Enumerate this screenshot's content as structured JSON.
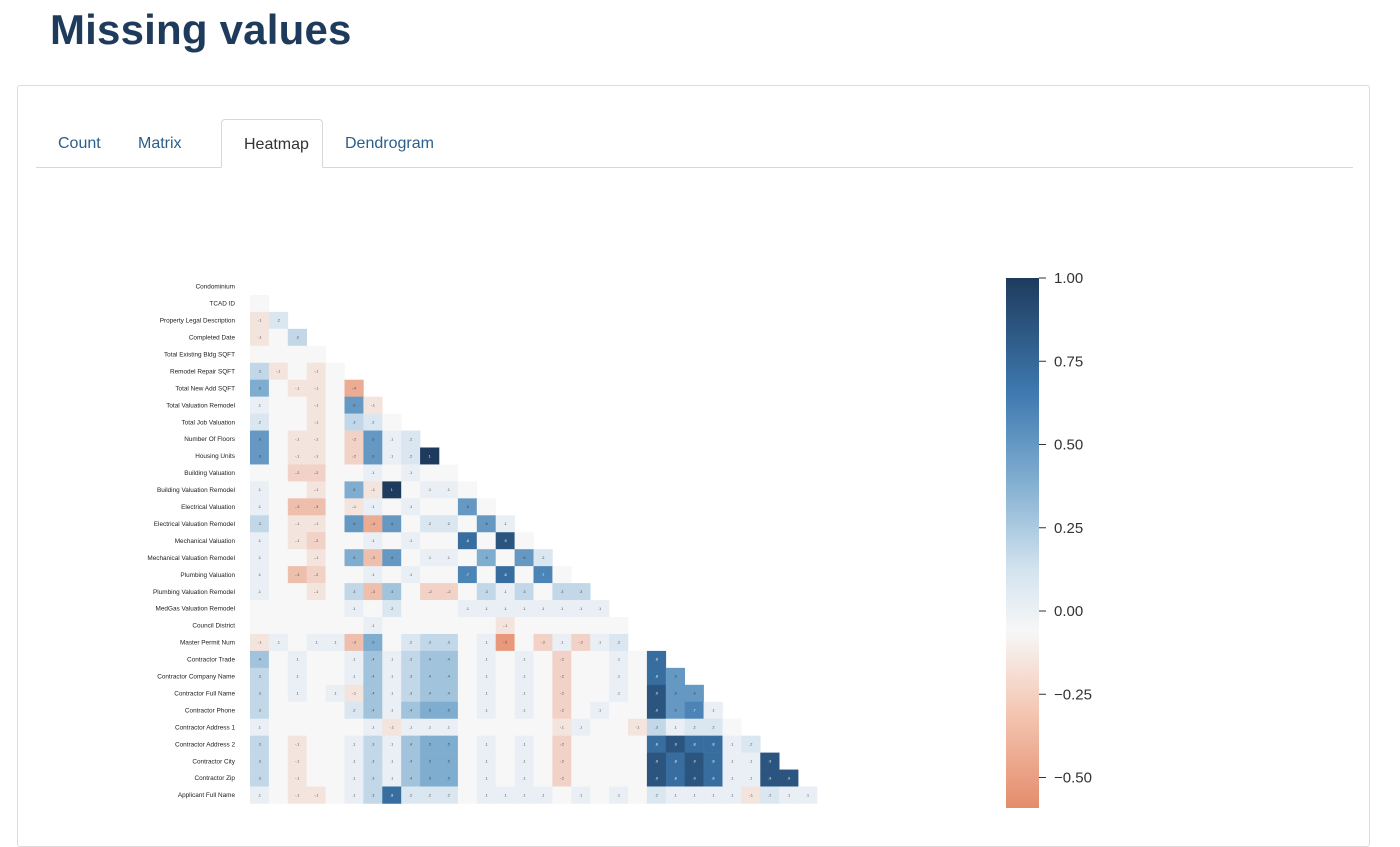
{
  "page": {
    "title": "Missing values"
  },
  "tabs": [
    {
      "label": "Count",
      "active": false
    },
    {
      "label": "Matrix",
      "active": false
    },
    {
      "label": "Heatmap",
      "active": true
    },
    {
      "label": "Dendrogram",
      "active": false
    }
  ],
  "chart_data": {
    "type": "heatmap",
    "title": "",
    "triangle": "lower",
    "rows": [
      "Condominium",
      "TCAD ID",
      "Property Legal Description",
      "Completed Date",
      "Total Existing Bldg SQFT",
      "Remodel Repair SQFT",
      "Total New Add SQFT",
      "Total Valuation Remodel",
      "Total Job Valuation",
      "Number Of Floors",
      "Housing Units",
      "Building Valuation",
      "Building Valuation Remodel",
      "Electrical Valuation",
      "Electrical Valuation Remodel",
      "Mechanical Valuation",
      "Mechanical Valuation Remodel",
      "Plumbing Valuation",
      "Plumbing Valuation Remodel",
      "MedGas Valuation Remodel",
      "Council District",
      "Master Permit Num",
      "Contractor Trade",
      "Contractor Company Name",
      "Contractor Full Name",
      "Contractor Phone",
      "Contractor Address 1",
      "Contractor Address 2",
      "Contractor City",
      "Contractor Zip",
      "Applicant Full Name"
    ],
    "values": [
      [],
      [
        0.0
      ],
      [
        -0.1,
        0.2
      ],
      [
        -0.1,
        0.0,
        0.3
      ],
      [
        0.0,
        0.0,
        0.0,
        0.0
      ],
      [
        0.3,
        -0.1,
        0.0,
        -0.1,
        0.0
      ],
      [
        0.5,
        0.0,
        -0.1,
        -0.1,
        0.0,
        -0.4
      ],
      [
        0.1,
        0.0,
        0.0,
        -0.1,
        0.0,
        0.6,
        -0.1
      ],
      [
        0.2,
        0.0,
        0.0,
        -0.1,
        0.0,
        0.3,
        0.2,
        0.0
      ],
      [
        0.6,
        0.0,
        -0.1,
        -0.1,
        0.0,
        -0.2,
        0.6,
        0.1,
        0.2
      ],
      [
        0.6,
        0.0,
        -0.1,
        -0.1,
        0.0,
        -0.2,
        0.6,
        0.1,
        0.2,
        1.0
      ],
      [
        0.0,
        0.0,
        -0.2,
        -0.2,
        0.0,
        0.0,
        0.1,
        0.0,
        0.1,
        0.0,
        0.0
      ],
      [
        0.1,
        0.0,
        0.0,
        -0.1,
        0.0,
        0.5,
        -0.1,
        1.0,
        0.0,
        0.1,
        0.1,
        0.0
      ],
      [
        0.1,
        0.0,
        -0.3,
        -0.3,
        0.0,
        -0.1,
        0.1,
        0.0,
        0.1,
        0.0,
        0.0,
        0.6,
        0.0
      ],
      [
        0.3,
        0.0,
        -0.1,
        -0.1,
        0.0,
        0.6,
        -0.4,
        0.6,
        0.0,
        0.2,
        0.2,
        0.0,
        0.6,
        0.1
      ],
      [
        0.1,
        0.0,
        -0.1,
        -0.2,
        0.0,
        0.0,
        0.1,
        0.0,
        0.1,
        0.0,
        0.0,
        0.8,
        0.0,
        0.9,
        0.0
      ],
      [
        0.1,
        0.0,
        0.0,
        -0.1,
        0.0,
        0.5,
        -0.3,
        0.6,
        0.0,
        0.1,
        0.1,
        0.0,
        0.5,
        0.0,
        0.6,
        0.2
      ],
      [
        0.1,
        0.0,
        -0.3,
        -0.2,
        0.0,
        0.0,
        0.1,
        0.0,
        0.1,
        0.0,
        0.0,
        0.7,
        0.0,
        0.8,
        0.0,
        0.7,
        0.0
      ],
      [
        0.1,
        0.0,
        0.0,
        -0.1,
        0.0,
        0.3,
        -0.3,
        0.4,
        0.0,
        -0.2,
        -0.2,
        0.0,
        0.3,
        0.1,
        0.3,
        0.0,
        0.3,
        0.3
      ],
      [
        0.0,
        0.0,
        0.0,
        0.0,
        0.0,
        0.1,
        0.0,
        0.2,
        0.0,
        0.0,
        0.0,
        0.1,
        0.1,
        0.1,
        0.1,
        0.1,
        0.1,
        0.1,
        0.1
      ],
      [
        0.0,
        0.0,
        0.0,
        0.0,
        0.0,
        0.0,
        0.1,
        0.0,
        0.0,
        0.0,
        0.0,
        0.0,
        0.0,
        -0.1,
        0.0,
        0.0,
        0.0,
        0.0,
        0.0,
        0.0
      ],
      [
        -0.1,
        0.1,
        0.0,
        0.1,
        0.1,
        -0.3,
        0.5,
        0.0,
        0.2,
        0.3,
        0.3,
        0.0,
        0.1,
        -0.5,
        0.0,
        -0.2,
        0.1,
        -0.2,
        0.1,
        0.2
      ],
      [
        0.4,
        0.0,
        0.1,
        0.0,
        0.0,
        0.1,
        0.4,
        0.1,
        0.3,
        0.4,
        0.4,
        0.0,
        0.1,
        0.0,
        0.1,
        0.0,
        -0.2,
        0.0,
        0.0,
        0.1,
        0.0,
        0.8
      ],
      [
        0.3,
        0.0,
        0.1,
        0.0,
        0.0,
        0.1,
        0.4,
        0.1,
        0.3,
        0.4,
        0.4,
        0.0,
        0.1,
        0.0,
        0.1,
        0.0,
        -0.2,
        0.0,
        0.0,
        0.1,
        0.0,
        0.8,
        0.6
      ],
      [
        0.3,
        0.0,
        0.1,
        0.0,
        0.1,
        -0.1,
        0.4,
        0.1,
        0.3,
        0.4,
        0.4,
        0.0,
        0.1,
        0.0,
        0.1,
        0.0,
        -0.2,
        0.0,
        0.0,
        0.1,
        0.0,
        0.9,
        0.6,
        0.6
      ],
      [
        0.3,
        0.0,
        0.0,
        0.0,
        0.0,
        0.2,
        0.4,
        0.1,
        0.4,
        0.5,
        0.5,
        0.0,
        0.1,
        0.0,
        0.1,
        0.0,
        -0.2,
        0.0,
        0.1,
        0.0,
        0.0,
        0.9,
        0.6,
        0.7,
        0.1
      ],
      [
        0.1,
        0.0,
        0.0,
        0.0,
        0.0,
        0.0,
        0.1,
        -0.1,
        0.1,
        0.1,
        0.1,
        0.0,
        0.0,
        0.0,
        0.0,
        0.0,
        -0.1,
        0.1,
        0.0,
        0.0,
        -0.1,
        0.3,
        0.1,
        0.2,
        0.2,
        0.0
      ],
      [
        0.3,
        0.0,
        -0.1,
        0.0,
        0.0,
        0.1,
        0.3,
        0.1,
        0.4,
        0.5,
        0.5,
        0.0,
        0.1,
        0.0,
        0.1,
        0.0,
        -0.2,
        0.0,
        0.0,
        0.0,
        0.0,
        0.8,
        0.9,
        0.8,
        0.8,
        0.1,
        0.2
      ],
      [
        0.3,
        0.0,
        -0.1,
        0.0,
        0.0,
        0.1,
        0.3,
        0.1,
        0.4,
        0.5,
        0.5,
        0.0,
        0.1,
        0.0,
        0.1,
        0.0,
        -0.2,
        0.0,
        0.0,
        0.0,
        0.0,
        0.9,
        0.8,
        0.9,
        0.8,
        0.1,
        0.1,
        0.9
      ],
      [
        0.3,
        0.0,
        -0.1,
        0.0,
        0.0,
        0.1,
        0.3,
        0.1,
        0.4,
        0.5,
        0.5,
        0.0,
        0.1,
        0.0,
        0.1,
        0.0,
        -0.2,
        0.0,
        0.0,
        0.0,
        0.0,
        0.9,
        0.8,
        0.9,
        0.8,
        0.1,
        0.1,
        0.9,
        0.9
      ],
      [
        0.1,
        0.0,
        -0.1,
        -0.1,
        0.0,
        0.1,
        0.3,
        0.8,
        0.2,
        0.2,
        0.2,
        0.0,
        0.1,
        0.1,
        0.1,
        0.1,
        0.0,
        0.1,
        0.0,
        0.1,
        0.0,
        0.2,
        0.1,
        0.1,
        0.1,
        0.1,
        -0.1,
        0.2,
        0.1,
        0.1
      ]
    ],
    "colorbar": {
      "ticks": [
        1.0,
        0.75,
        0.5,
        0.25,
        0.0,
        -0.25,
        -0.5
      ],
      "tick_labels": [
        "1.00",
        "0.75",
        "0.50",
        "0.25",
        "0.00",
        "−0.25",
        "−0.50"
      ]
    },
    "colors": {
      "negative": "#e8906f",
      "neutral": "#f7f7f7",
      "positive": "#1e3b5e"
    }
  }
}
